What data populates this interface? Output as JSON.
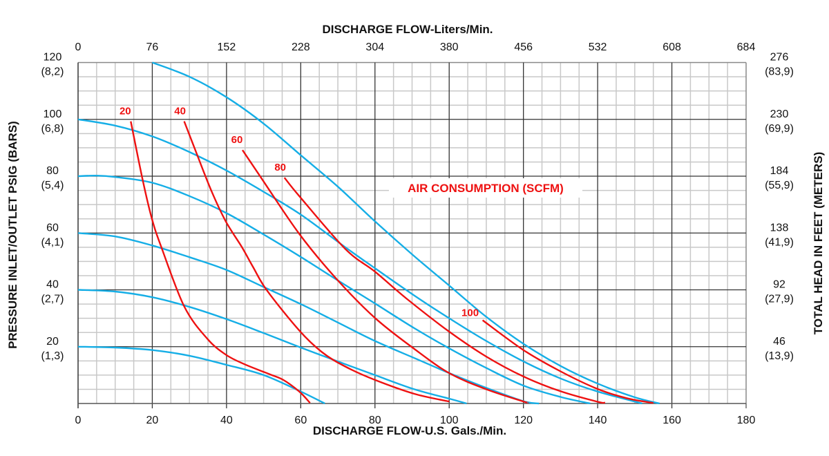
{
  "chart_data": {
    "type": "line",
    "title_top": "DISCHARGE FLOW-Liters/Min.",
    "xlabel": "DISCHARGE FLOW-U.S. Gals./Min.",
    "ylabel": "PRESSURE INLET/OUTLET PSIG (BARS)",
    "ylabel_right": "TOTAL HEAD IN FEET (METERS)",
    "annotation": "AIR CONSUMPTION (SCFM)",
    "xlim": [
      0,
      180
    ],
    "ylim": [
      0,
      120
    ],
    "grid": true,
    "x_ticks": [
      "0",
      "20",
      "40",
      "60",
      "80",
      "100",
      "120",
      "140",
      "160",
      "180"
    ],
    "x_ticks_top": [
      "0",
      "76",
      "152",
      "228",
      "304",
      "380",
      "456",
      "532",
      "608",
      "684"
    ],
    "y_ticks_left": [
      {
        "value": 120,
        "psi": "120",
        "bar": "(8,2)"
      },
      {
        "value": 100,
        "psi": "100",
        "bar": "(6,8)"
      },
      {
        "value": 80,
        "psi": "80",
        "bar": "(5,4)"
      },
      {
        "value": 60,
        "psi": "60",
        "bar": "(4,1)"
      },
      {
        "value": 40,
        "psi": "40",
        "bar": "(2,7)"
      },
      {
        "value": 20,
        "psi": "20",
        "bar": "(1,3)"
      }
    ],
    "y_ticks_right": [
      {
        "value": 120,
        "feet": "276",
        "meters": "(83,9)"
      },
      {
        "value": 100,
        "feet": "230",
        "meters": "(69,9)"
      },
      {
        "value": 80,
        "feet": "184",
        "meters": "(55,9)"
      },
      {
        "value": 60,
        "feet": "138",
        "meters": "(41,9)"
      },
      {
        "value": 40,
        "feet": "92",
        "meters": "(27,9)"
      },
      {
        "value": 20,
        "feet": "46",
        "meters": "(13,9)"
      }
    ],
    "colors": {
      "pressure_curves": "#15aee6",
      "air_curves": "#ee1111",
      "major_grid": "#333333",
      "minor_grid": "#c8c8c8"
    },
    "pressure_curves": [
      {
        "psi": 120,
        "points": [
          [
            20,
            120
          ],
          [
            30,
            115
          ],
          [
            40,
            107.8
          ],
          [
            50,
            98.5
          ],
          [
            60,
            87.4
          ],
          [
            70,
            76.3
          ],
          [
            80,
            64.1
          ],
          [
            90,
            52.5
          ],
          [
            100,
            41.5
          ],
          [
            110,
            30.5
          ],
          [
            120,
            21
          ],
          [
            130,
            13.2
          ],
          [
            140,
            7
          ],
          [
            150,
            2.2
          ],
          [
            156.7,
            0
          ]
        ]
      },
      {
        "psi": 100,
        "points": [
          [
            0,
            100
          ],
          [
            10,
            97.8
          ],
          [
            20,
            94
          ],
          [
            30,
            88.5
          ],
          [
            40,
            82
          ],
          [
            50,
            74.5
          ],
          [
            60,
            66.5
          ],
          [
            72,
            55
          ],
          [
            80,
            47.6
          ],
          [
            90.6,
            38
          ],
          [
            100,
            30
          ],
          [
            110,
            22
          ],
          [
            120,
            14.8
          ],
          [
            130,
            8.8
          ],
          [
            140,
            4.2
          ],
          [
            152,
            0
          ]
        ]
      },
      {
        "psi": 80,
        "points": [
          [
            0,
            80
          ],
          [
            5,
            80.2
          ],
          [
            10,
            79.7
          ],
          [
            20,
            77.7
          ],
          [
            30,
            73
          ],
          [
            40,
            67
          ],
          [
            50,
            59.5
          ],
          [
            60,
            51.6
          ],
          [
            70,
            43.3
          ],
          [
            80,
            35.2
          ],
          [
            90.6,
            26.5
          ],
          [
            100,
            19.4
          ],
          [
            110,
            12.5
          ],
          [
            120,
            6.3
          ],
          [
            130,
            2.3
          ],
          [
            138,
            0
          ]
        ]
      },
      {
        "psi": 60,
        "points": [
          [
            0,
            60
          ],
          [
            10,
            58.8
          ],
          [
            20,
            55.6
          ],
          [
            30,
            51.5
          ],
          [
            40,
            47
          ],
          [
            50,
            41
          ],
          [
            60,
            35
          ],
          [
            70,
            28.5
          ],
          [
            80,
            22
          ],
          [
            90.6,
            16
          ],
          [
            100,
            10.7
          ],
          [
            110,
            5.5
          ],
          [
            120,
            0.8
          ],
          [
            124.2,
            0
          ]
        ]
      },
      {
        "psi": 40,
        "points": [
          [
            0,
            40
          ],
          [
            10,
            39.4
          ],
          [
            20,
            37.4
          ],
          [
            30,
            34
          ],
          [
            40,
            29.7
          ],
          [
            50,
            24.8
          ],
          [
            60,
            19.7
          ],
          [
            70,
            14.8
          ],
          [
            80,
            10
          ],
          [
            90.6,
            5
          ],
          [
            100,
            1.7
          ],
          [
            104.7,
            0
          ]
        ]
      },
      {
        "psi": 20,
        "points": [
          [
            0,
            20
          ],
          [
            10,
            19.7
          ],
          [
            20,
            18.8
          ],
          [
            30,
            16.8
          ],
          [
            40,
            13.6
          ],
          [
            50,
            10
          ],
          [
            60,
            4.2
          ],
          [
            66.5,
            0
          ]
        ]
      }
    ],
    "air_curves": [
      {
        "label": "20",
        "points": [
          [
            14.2,
            99.3
          ],
          [
            17.4,
            78.7
          ],
          [
            19.9,
            65
          ],
          [
            22.4,
            55.2
          ],
          [
            28.6,
            34.2
          ],
          [
            34.8,
            22.8
          ],
          [
            39.8,
            17.2
          ],
          [
            44.7,
            13.9
          ],
          [
            51.6,
            10.3
          ],
          [
            55.3,
            8.3
          ],
          [
            59.6,
            4.2
          ],
          [
            62.5,
            0.2
          ]
        ]
      },
      {
        "label": "40",
        "points": [
          [
            28.6,
            99.3
          ],
          [
            32.3,
            86.8
          ],
          [
            36,
            74.6
          ],
          [
            39.8,
            64.1
          ],
          [
            44.2,
            54.9
          ],
          [
            47.2,
            47.9
          ],
          [
            50.9,
            39.8
          ],
          [
            59.6,
            25.7
          ],
          [
            65.8,
            18
          ],
          [
            72,
            13
          ],
          [
            80,
            8.3
          ],
          [
            90.6,
            3.4
          ],
          [
            100,
            0.7
          ]
        ]
      },
      {
        "label": "60",
        "points": [
          [
            44.3,
            89.2
          ],
          [
            49.7,
            78.7
          ],
          [
            59.6,
            59.7
          ],
          [
            69.6,
            43.9
          ],
          [
            80,
            30.1
          ],
          [
            90.6,
            19.2
          ],
          [
            100,
            10.7
          ],
          [
            110,
            5
          ],
          [
            120,
            0.7
          ],
          [
            121,
            0.4
          ]
        ]
      },
      {
        "label": "80",
        "points": [
          [
            55.6,
            79.5
          ],
          [
            59.6,
            73
          ],
          [
            72,
            54.4
          ],
          [
            80,
            46.4
          ],
          [
            88.8,
            36.6
          ],
          [
            100,
            25.3
          ],
          [
            110,
            16.5
          ],
          [
            120,
            9.5
          ],
          [
            130,
            4.3
          ],
          [
            140,
            0.6
          ],
          [
            142,
            0.3
          ]
        ]
      },
      {
        "label": "100",
        "points": [
          [
            109,
            29.3
          ],
          [
            120,
            18.8
          ],
          [
            130,
            11.3
          ],
          [
            140,
            5.1
          ],
          [
            148,
            1.8
          ],
          [
            155,
            0.2
          ]
        ]
      }
    ]
  }
}
